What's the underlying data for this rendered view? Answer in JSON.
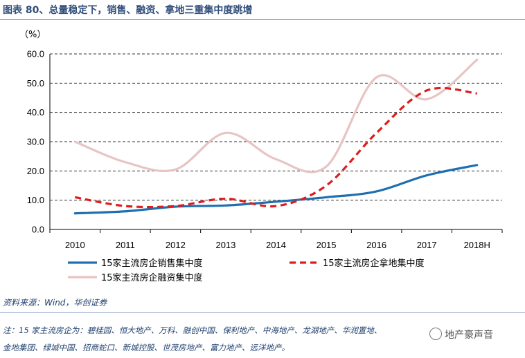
{
  "title": "图表 80、总量稳定下，销售、融资、拿地三重集中度跳增",
  "chart_data": {
    "type": "line",
    "unit_label": "（%）",
    "categories": [
      "2010",
      "2011",
      "2012",
      "2013",
      "2014",
      "2015",
      "2016",
      "2017",
      "2018H"
    ],
    "ylim": [
      0,
      60
    ],
    "yticks": [
      "0.0",
      "10.0",
      "20.0",
      "30.0",
      "40.0",
      "50.0",
      "60.0"
    ],
    "grid": "horizontal dashed",
    "series": [
      {
        "name": "15家主流房企销售集中度",
        "style": "solid",
        "color": "#1f6fb0",
        "values": [
          5.5,
          6.2,
          7.8,
          8.2,
          9.5,
          11,
          13,
          18.5,
          22
        ]
      },
      {
        "name": "15家主流房企拿地集中度",
        "style": "dashed",
        "color": "#e01b1b",
        "values": [
          11,
          8,
          8,
          10.5,
          8,
          15,
          33,
          47.5,
          46.5
        ]
      },
      {
        "name": "15家主流房企融资集中度",
        "style": "solid",
        "color": "#e8c4c4",
        "values": [
          30,
          23,
          20.5,
          33,
          24,
          21.5,
          52,
          44.5,
          58
        ]
      }
    ]
  },
  "source": "资料来源：Wind，华创证券",
  "notes": [
    "注：15 家主流房企为：碧桂园、恒大地产、万科、融创中国、保利地产、中海地产、龙湖地产、华润置地、",
    "金地集团、绿城中国、招商蛇口、新城控股、世茂房地产、富力地产、远洋地产。"
  ],
  "watermark": "地产豪声音"
}
